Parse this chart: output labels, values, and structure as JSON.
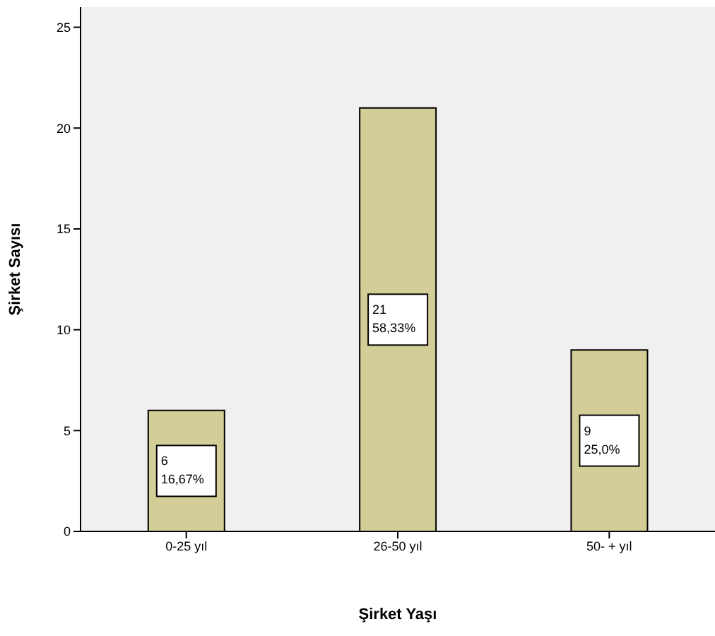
{
  "chart_data": {
    "type": "bar",
    "xlabel": "Şirket Yaşı",
    "ylabel": "Şirket Sayısı",
    "categories": [
      "0-25 yıl",
      "26-50 yıl",
      "50- + yıl"
    ],
    "values": [
      6,
      21,
      9
    ],
    "value_labels": [
      "6\n16,67%",
      "21\n58,33%",
      "9\n25,0%"
    ],
    "color": "#d3ce98",
    "ylim": [
      0,
      26
    ],
    "yticks": [
      0,
      5,
      10,
      15,
      20,
      25
    ]
  }
}
